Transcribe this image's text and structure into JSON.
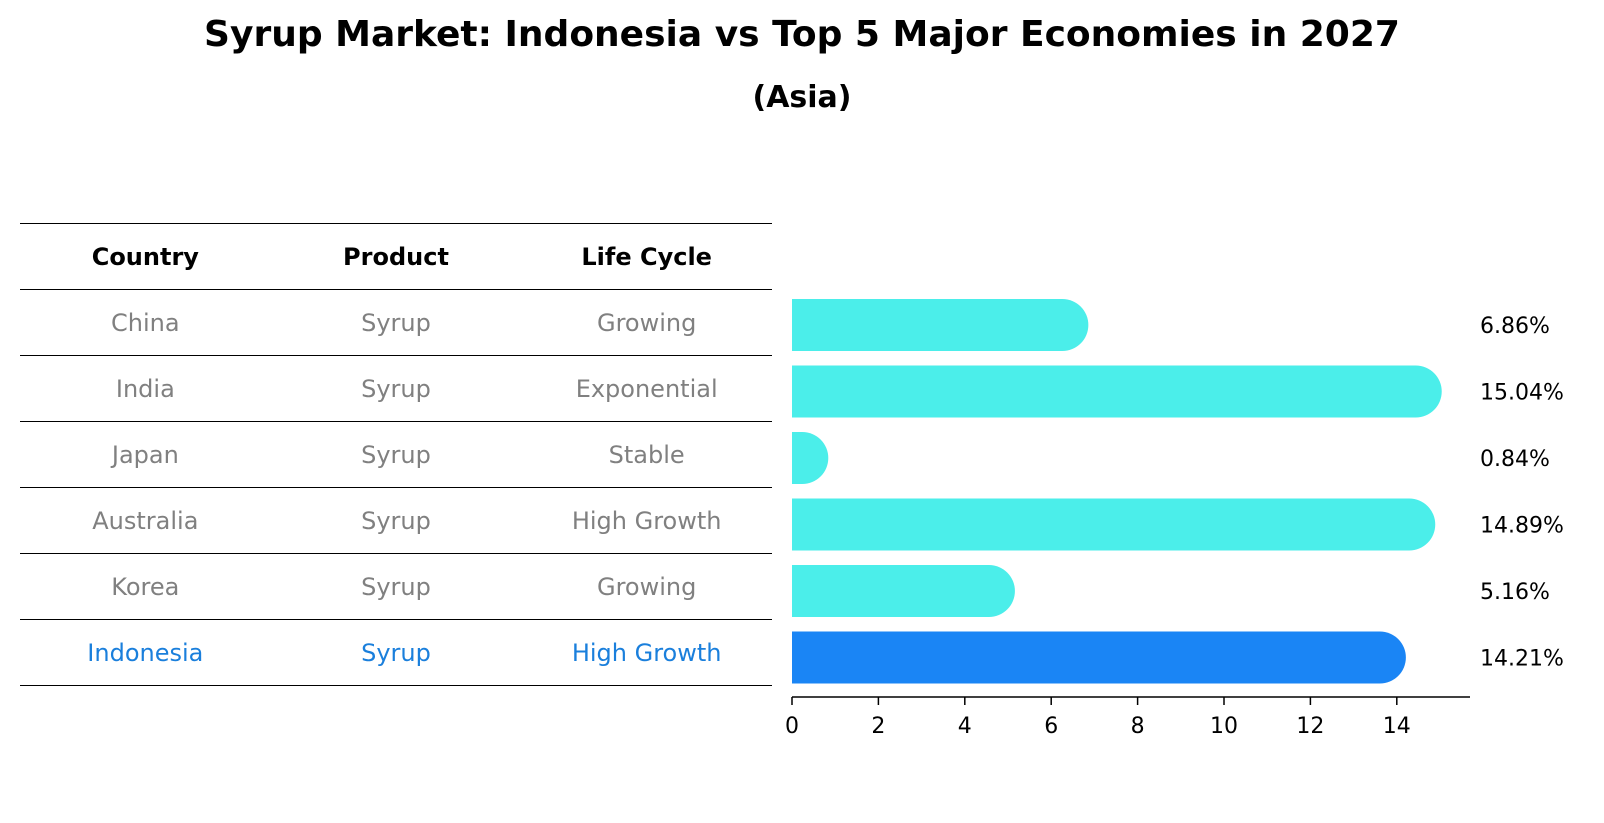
{
  "title": "Syrup Market: Indonesia vs Top 5 Major Economies in 2027",
  "subtitle": "(Asia)",
  "table": {
    "headers": [
      "Country",
      "Product",
      "Life Cycle"
    ],
    "rows": [
      [
        "China",
        "Syrup",
        "Growing"
      ],
      [
        "India",
        "Syrup",
        "Exponential"
      ],
      [
        "Japan",
        "Syrup",
        "Stable"
      ],
      [
        "Australia",
        "Syrup",
        "High Growth"
      ],
      [
        "Korea",
        "Syrup",
        "Growing"
      ],
      [
        "Indonesia",
        "Syrup",
        "High Growth"
      ]
    ],
    "highlight_row": 5
  },
  "colors": {
    "bar": "#4beeea",
    "highlight_bar": "#1a85f5",
    "highlight_text": "#1a7fdc",
    "muted_text": "#808080"
  },
  "chart_data": {
    "type": "bar",
    "orientation": "horizontal",
    "categories": [
      "China",
      "India",
      "Japan",
      "Australia",
      "Korea",
      "Indonesia"
    ],
    "values": [
      6.86,
      15.04,
      0.84,
      14.89,
      5.16,
      14.21
    ],
    "value_labels": [
      "6.86%",
      "15.04%",
      "0.84%",
      "14.89%",
      "5.16%",
      "14.21%"
    ],
    "highlight_category": "Indonesia",
    "xlim": [
      0,
      15.8
    ],
    "xticks": [
      0,
      2,
      4,
      6,
      8,
      10,
      12,
      14
    ],
    "grid": false
  }
}
